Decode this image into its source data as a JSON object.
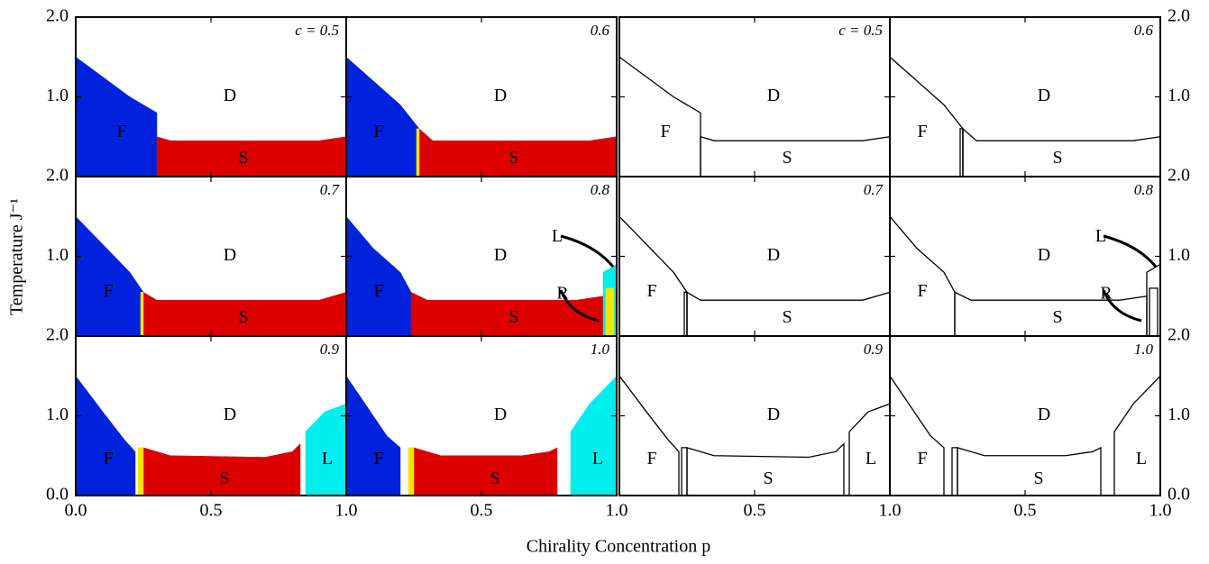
{
  "chart_data": {
    "type": "phase-diagram",
    "xlabel": "Chirality Concentration p",
    "ylabel": "Temperature J⁻¹",
    "xlim": [
      0,
      1
    ],
    "ylim": [
      0,
      2
    ],
    "xticks": [
      {
        "value": 0,
        "label": "0.0"
      },
      0.5,
      {
        "value": 1,
        "label": "1.0"
      }
    ],
    "yticks": [
      {
        "value": 0,
        "label": "0.0"
      },
      {
        "value": 1,
        "label": "1.0"
      },
      {
        "value": 2,
        "label": "2.0"
      }
    ],
    "panels": [
      {
        "label": "c = 0.5",
        "regions": [
          {
            "color": "#0022dd",
            "x": [
              0,
              0,
              0.1,
              0.2,
              0.3,
              0.3
            ],
            "y": [
              0,
              1.5,
              1.25,
              1.0,
              0.8,
              0
            ]
          },
          {
            "color": "#dd0000",
            "x": [
              0.3,
              0.3,
              0.35,
              0.9,
              1,
              1
            ],
            "y": [
              0,
              0.5,
              0.45,
              0.45,
              0.5,
              0
            ]
          }
        ],
        "labels": [
          {
            "text": "D",
            "x": 0.57,
            "y": 1.0
          },
          {
            "text": "F",
            "x": 0.17,
            "y": 0.55
          },
          {
            "text": "S",
            "x": 0.62,
            "y": 0.22
          }
        ]
      },
      {
        "label": "0.6",
        "regions": [
          {
            "color": "#0022dd",
            "x": [
              0,
              0,
              0.1,
              0.2,
              0.27,
              0.27
            ],
            "y": [
              0,
              1.5,
              1.2,
              0.9,
              0.6,
              0
            ]
          },
          {
            "color": "#dd0000",
            "x": [
              0.27,
              0.27,
              0.32,
              0.9,
              1,
              1
            ],
            "y": [
              0,
              0.6,
              0.45,
              0.45,
              0.5,
              0
            ]
          },
          {
            "color": "#f5e400",
            "x": [
              0.26,
              0.26,
              0.27,
              0.27
            ],
            "y": [
              0,
              0.6,
              0.6,
              0
            ]
          }
        ],
        "labels": [
          {
            "text": "D",
            "x": 0.57,
            "y": 1.0
          },
          {
            "text": "F",
            "x": 0.12,
            "y": 0.55
          },
          {
            "text": "S",
            "x": 0.62,
            "y": 0.22
          }
        ]
      },
      {
        "label": "0.7",
        "regions": [
          {
            "color": "#0022dd",
            "x": [
              0,
              0,
              0.1,
              0.2,
              0.25,
              0.25
            ],
            "y": [
              0,
              1.5,
              1.15,
              0.8,
              0.55,
              0
            ]
          },
          {
            "color": "#dd0000",
            "x": [
              0.25,
              0.25,
              0.3,
              0.9,
              1,
              1
            ],
            "y": [
              0,
              0.55,
              0.45,
              0.45,
              0.55,
              0
            ]
          },
          {
            "color": "#f5e400",
            "x": [
              0.24,
              0.24,
              0.25,
              0.25
            ],
            "y": [
              0,
              0.55,
              0.55,
              0
            ]
          }
        ],
        "labels": [
          {
            "text": "D",
            "x": 0.57,
            "y": 1.0
          },
          {
            "text": "F",
            "x": 0.12,
            "y": 0.55
          },
          {
            "text": "S",
            "x": 0.62,
            "y": 0.22
          }
        ]
      },
      {
        "label": "0.8",
        "regions": [
          {
            "color": "#0022dd",
            "x": [
              0,
              0,
              0.1,
              0.2,
              0.24,
              0.24
            ],
            "y": [
              0,
              1.5,
              1.1,
              0.8,
              0.55,
              0
            ]
          },
          {
            "color": "#dd0000",
            "x": [
              0.24,
              0.24,
              0.3,
              0.85,
              0.95,
              0.95
            ],
            "y": [
              0,
              0.55,
              0.45,
              0.45,
              0.5,
              0
            ]
          },
          {
            "color": "#00eeee",
            "x": [
              0.95,
              0.95,
              1,
              1
            ],
            "y": [
              0,
              0.8,
              0.9,
              0
            ]
          },
          {
            "color": "#f5e400",
            "x": [
              0.96,
              0.96,
              0.99,
              0.99
            ],
            "y": [
              0,
              0.6,
              0.6,
              0
            ]
          }
        ],
        "labels": [
          {
            "text": "D",
            "x": 0.57,
            "y": 1.0
          },
          {
            "text": "F",
            "x": 0.12,
            "y": 0.55
          },
          {
            "text": "S",
            "x": 0.62,
            "y": 0.22
          },
          {
            "text": "L",
            "x": 0.78,
            "y": 1.24
          },
          {
            "text": "R",
            "x": 0.8,
            "y": 0.52
          }
        ]
      },
      {
        "label": "0.9",
        "regions": [
          {
            "color": "#0022dd",
            "x": [
              0,
              0,
              0.1,
              0.18,
              0.22,
              0.22
            ],
            "y": [
              0,
              1.5,
              1.05,
              0.7,
              0.55,
              0
            ]
          },
          {
            "color": "#dd0000",
            "x": [
              0.25,
              0.25,
              0.35,
              0.7,
              0.8,
              0.83,
              0.83
            ],
            "y": [
              0,
              0.6,
              0.5,
              0.48,
              0.55,
              0.65,
              0
            ]
          },
          {
            "color": "#00eeee",
            "x": [
              0.85,
              0.85,
              0.92,
              1,
              1
            ],
            "y": [
              0,
              0.8,
              1.05,
              1.15,
              0
            ]
          },
          {
            "color": "#f5e400",
            "x": [
              0.23,
              0.23,
              0.25,
              0.25
            ],
            "y": [
              0,
              0.6,
              0.6,
              0
            ]
          }
        ],
        "labels": [
          {
            "text": "D",
            "x": 0.57,
            "y": 1.0
          },
          {
            "text": "F",
            "x": 0.12,
            "y": 0.45
          },
          {
            "text": "S",
            "x": 0.55,
            "y": 0.2
          },
          {
            "text": "L",
            "x": 0.93,
            "y": 0.45
          }
        ]
      },
      {
        "label": "1.0",
        "regions": [
          {
            "color": "#0022dd",
            "x": [
              0,
              0,
              0.1,
              0.15,
              0.2,
              0.2
            ],
            "y": [
              0,
              1.5,
              1.0,
              0.75,
              0.6,
              0
            ]
          },
          {
            "color": "#dd0000",
            "x": [
              0.25,
              0.25,
              0.35,
              0.65,
              0.75,
              0.78,
              0.78
            ],
            "y": [
              0,
              0.6,
              0.5,
              0.5,
              0.55,
              0.6,
              0
            ]
          },
          {
            "color": "#00eeee",
            "x": [
              0.83,
              0.83,
              0.9,
              1,
              1
            ],
            "y": [
              0,
              0.8,
              1.15,
              1.5,
              0
            ]
          },
          {
            "color": "#f5e400",
            "x": [
              0.23,
              0.23,
              0.25,
              0.25
            ],
            "y": [
              0,
              0.6,
              0.6,
              0
            ]
          }
        ],
        "labels": [
          {
            "text": "D",
            "x": 0.57,
            "y": 1.0
          },
          {
            "text": "F",
            "x": 0.12,
            "y": 0.45
          },
          {
            "text": "S",
            "x": 0.55,
            "y": 0.2
          },
          {
            "text": "L",
            "x": 0.93,
            "y": 0.45
          }
        ]
      }
    ]
  }
}
